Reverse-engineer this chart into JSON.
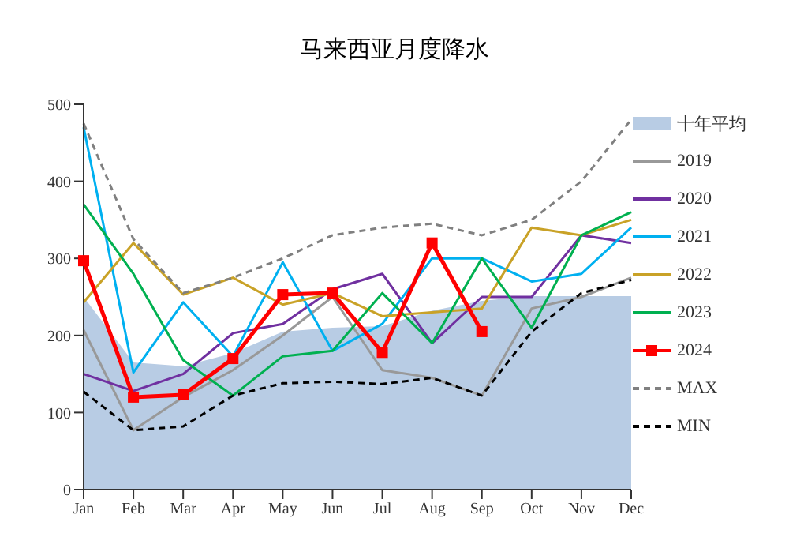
{
  "chart_data": {
    "type": "line",
    "title": "马来西亚月度降水",
    "categories": [
      "Jan",
      "Feb",
      "Mar",
      "Apr",
      "May",
      "Jun",
      "Jul",
      "Aug",
      "Sep",
      "Oct",
      "Nov",
      "Dec"
    ],
    "ylim": [
      0,
      500
    ],
    "yticks": [
      0,
      100,
      200,
      300,
      400,
      500
    ],
    "grid": false,
    "legend": "right",
    "marker": "none",
    "series": [
      {
        "name": "十年平均",
        "type": "area",
        "color": "#b8cce4",
        "values": [
          250,
          165,
          160,
          177,
          205,
          210,
          212,
          232,
          245,
          251,
          251,
          251
        ]
      },
      {
        "name": "2019",
        "color": "#999999",
        "values": [
          207,
          77,
          120,
          155,
          200,
          250,
          155,
          145,
          122,
          235,
          250,
          275
        ]
      },
      {
        "name": "2020",
        "color": "#7030a0",
        "values": [
          150,
          128,
          150,
          203,
          215,
          260,
          280,
          190,
          250,
          250,
          330,
          320
        ]
      },
      {
        "name": "2021",
        "color": "#00b0f0",
        "values": [
          470,
          152,
          243,
          173,
          295,
          180,
          215,
          300,
          300,
          270,
          280,
          340
        ]
      },
      {
        "name": "2022",
        "color": "#c9a227",
        "values": [
          243,
          320,
          253,
          275,
          240,
          255,
          225,
          230,
          235,
          340,
          330,
          350
        ]
      },
      {
        "name": "2023",
        "color": "#00b050",
        "values": [
          370,
          280,
          168,
          122,
          173,
          180,
          255,
          190,
          300,
          210,
          330,
          360
        ]
      },
      {
        "name": "2024",
        "color": "#ff0000",
        "marker": "square",
        "values": [
          297,
          120,
          123,
          170,
          253,
          255,
          178,
          320,
          205,
          null,
          null,
          null
        ]
      },
      {
        "name": "MAX",
        "color": "#808080",
        "line_style": "dashed",
        "values": [
          475,
          325,
          255,
          275,
          300,
          330,
          340,
          345,
          330,
          350,
          400,
          480
        ]
      },
      {
        "name": "MIN",
        "color": "#000000",
        "line_style": "dashed",
        "values": [
          127,
          77,
          82,
          122,
          138,
          140,
          137,
          145,
          122,
          205,
          255,
          272
        ]
      }
    ]
  }
}
